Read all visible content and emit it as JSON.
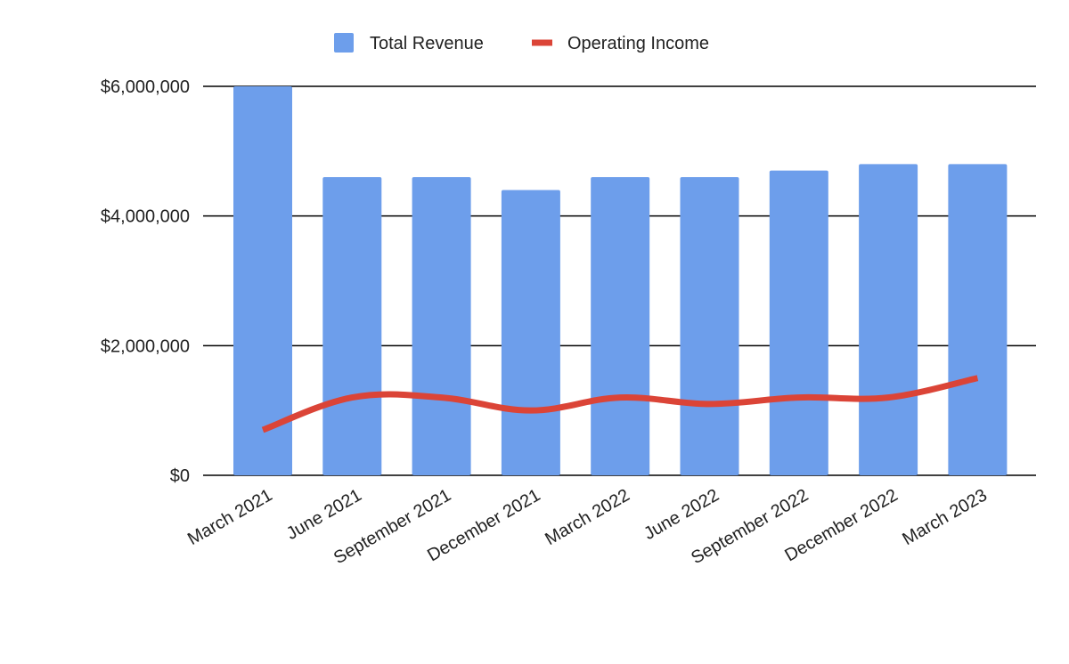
{
  "chart_data": {
    "type": "bar",
    "title": "",
    "xlabel": "",
    "ylabel": "",
    "categories": [
      "March 2021",
      "June 2021",
      "September 2021",
      "December 2021",
      "March 2022",
      "June 2022",
      "September 2022",
      "December 2022",
      "March 2023"
    ],
    "series": [
      {
        "name": "Total Revenue",
        "type": "bar",
        "color": "#6d9eeb",
        "values": [
          6000000,
          4600000,
          4600000,
          4400000,
          4600000,
          4600000,
          4700000,
          4800000,
          4800000
        ]
      },
      {
        "name": "Operating Income",
        "type": "line",
        "smooth": true,
        "color": "#db4437",
        "values": [
          700000,
          1200000,
          1200000,
          1000000,
          1200000,
          1100000,
          1200000,
          1200000,
          1500000
        ]
      }
    ],
    "ylim": [
      0,
      6000000
    ],
    "yticks": [
      0,
      2000000,
      4000000,
      6000000
    ],
    "ytick_labels": [
      "$0",
      "$2,000,000",
      "$4,000,000",
      "$6,000,000"
    ],
    "grid": true,
    "legend": "top"
  }
}
